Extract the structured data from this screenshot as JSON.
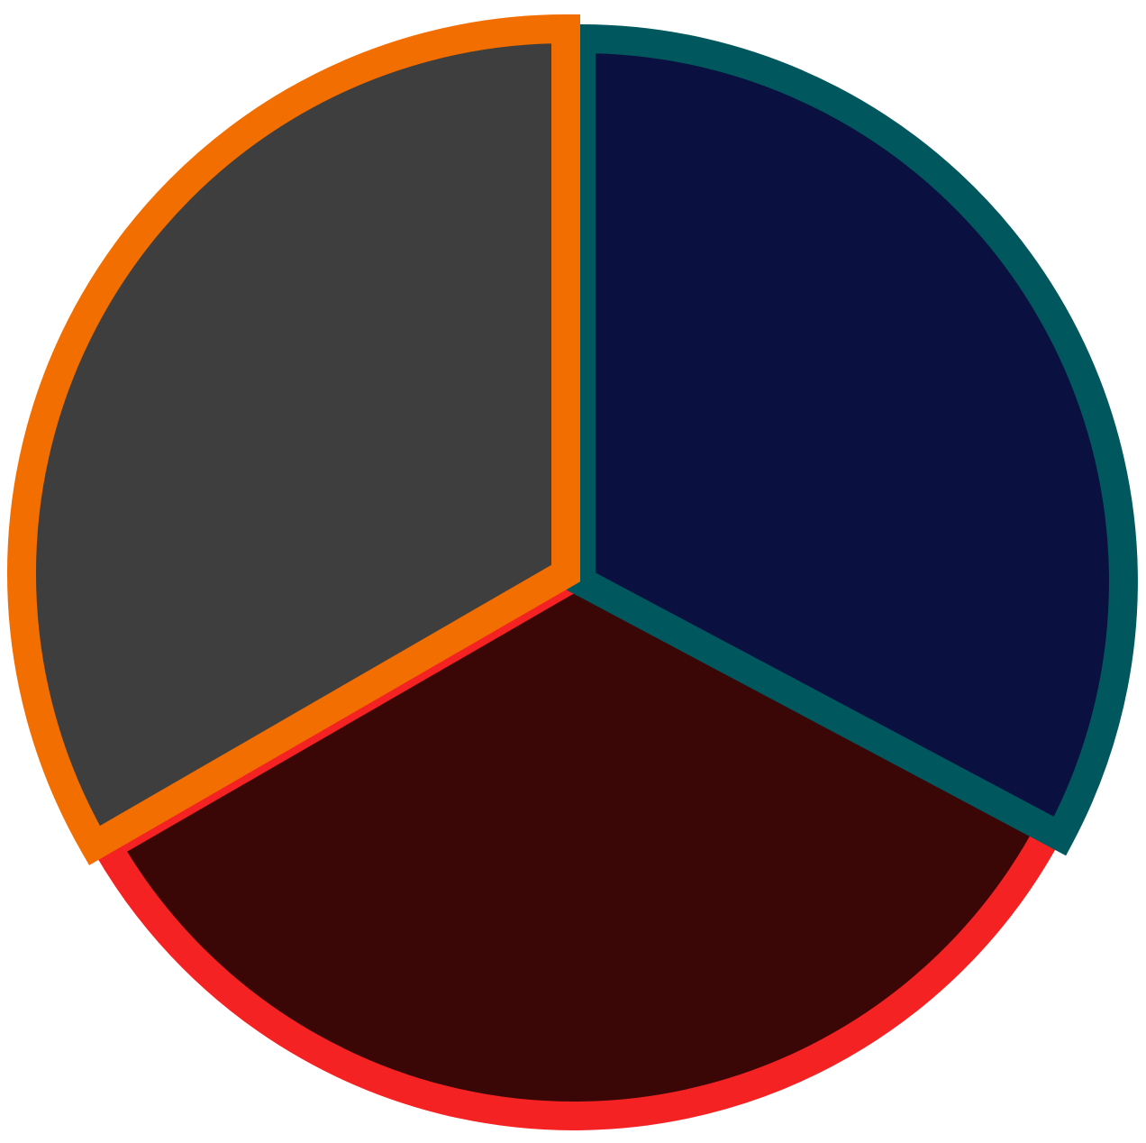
{
  "graphic": {
    "type": "three-segment-circle",
    "background_color": "#ffffff",
    "segments": [
      {
        "id": "right",
        "fill_color": "#0a1040",
        "texture_color": "#000000",
        "outline_color": "#00585e"
      },
      {
        "id": "bottom",
        "fill_color": "#3a0606",
        "texture_color": "#000000",
        "outline_color": "#f42222"
      },
      {
        "id": "left",
        "fill_color": "#3e3e3e",
        "texture_color": "#000000",
        "outline_color": "#f26e00"
      }
    ]
  }
}
